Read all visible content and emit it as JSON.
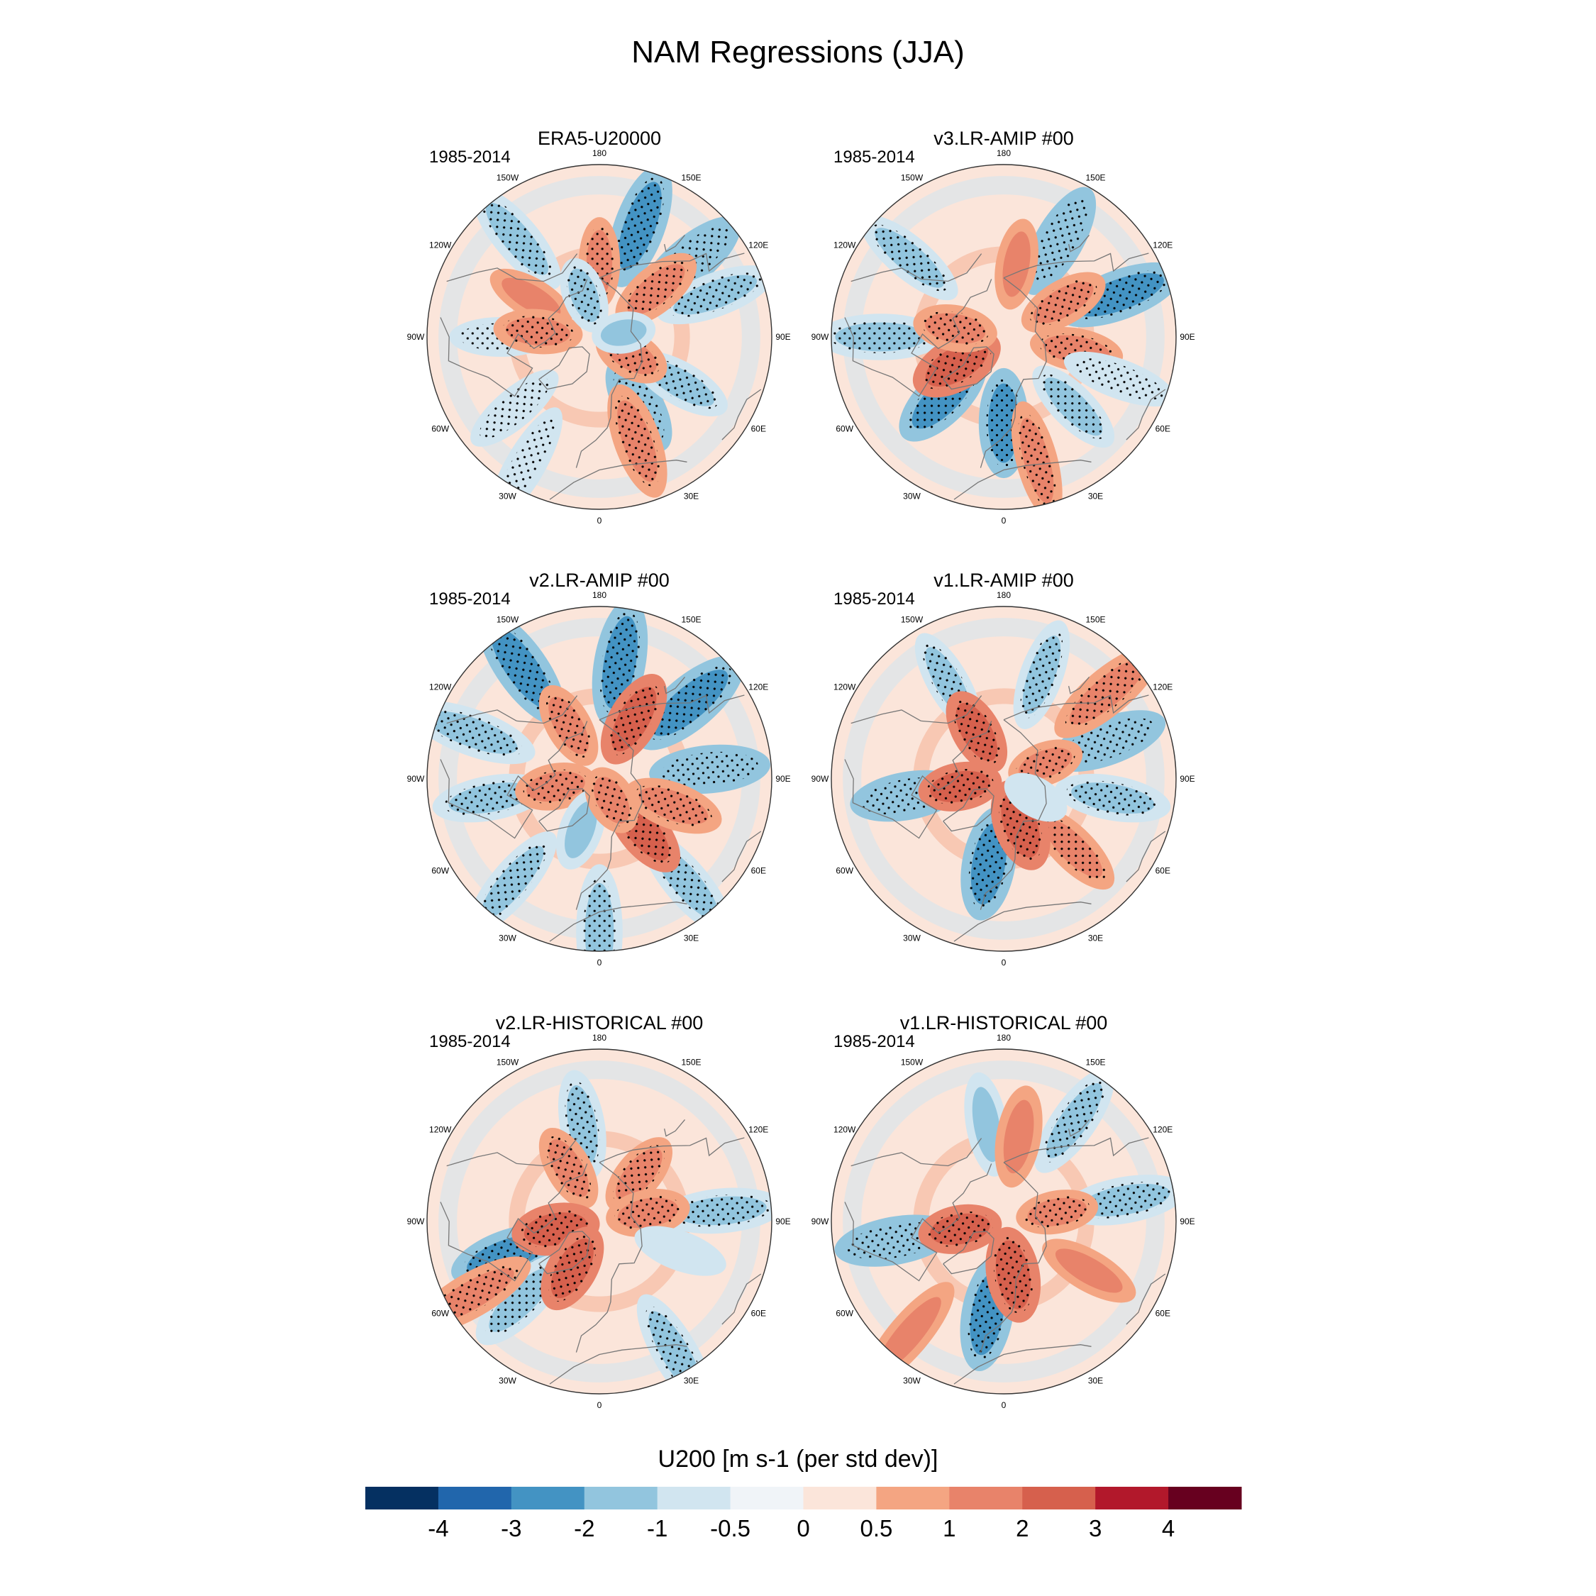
{
  "figure": {
    "title": "NAM Regressions (JJA)"
  },
  "panels": [
    {
      "title": "ERA5-U20000",
      "period": "1985-2014",
      "blobs": [
        {
          "lon": 160,
          "lat": 42,
          "value": -2.3,
          "stippled": true
        },
        {
          "lon": 130,
          "lat": 42,
          "value": -2.0,
          "stippled": true
        },
        {
          "lon": 110,
          "lat": 40,
          "value": -1.5,
          "stippled": true
        },
        {
          "lon": -140,
          "lat": 38,
          "value": -1.6,
          "stippled": true
        },
        {
          "lon": 180,
          "lat": 60,
          "value": 1.2,
          "stippled": true
        },
        {
          "lon": 130,
          "lat": 60,
          "value": 1.8,
          "stippled": true
        },
        {
          "lon": -120,
          "lat": 58,
          "value": 1.0,
          "stippled": false
        },
        {
          "lon": -90,
          "lat": 50,
          "value": -1.0,
          "stippled": true
        },
        {
          "lon": -95,
          "lat": 65,
          "value": 1.6,
          "stippled": true
        },
        {
          "lon": 30,
          "lat": 58,
          "value": -2.0,
          "stippled": true
        },
        {
          "lon": 60,
          "lat": 52,
          "value": -1.5,
          "stippled": true
        },
        {
          "lon": 60,
          "lat": 75,
          "value": 1.8,
          "stippled": true
        },
        {
          "lon": 20,
          "lat": 45,
          "value": 1.8,
          "stippled": true
        },
        {
          "lon": -50,
          "lat": 45,
          "value": -1.0,
          "stippled": true
        },
        {
          "lon": -160,
          "lat": 72,
          "value": -1.4,
          "stippled": true
        },
        {
          "lon": -30,
          "lat": 30,
          "value": -1.0,
          "stippled": true
        },
        {
          "lon": 100,
          "lat": 80,
          "value": -1.2,
          "stippled": false
        }
      ]
    },
    {
      "title": "v3.LR-AMIP  #00",
      "period": "1985-2014",
      "blobs": [
        {
          "lon": 150,
          "lat": 45,
          "value": -2.0,
          "stippled": true
        },
        {
          "lon": 110,
          "lat": 40,
          "value": -2.2,
          "stippled": true
        },
        {
          "lon": -130,
          "lat": 40,
          "value": -1.4,
          "stippled": true
        },
        {
          "lon": -90,
          "lat": 40,
          "value": -1.8,
          "stippled": true
        },
        {
          "lon": -45,
          "lat": 55,
          "value": -2.4,
          "stippled": true
        },
        {
          "lon": 0,
          "lat": 55,
          "value": -2.2,
          "stippled": true
        },
        {
          "lon": 45,
          "lat": 50,
          "value": -1.4,
          "stippled": true
        },
        {
          "lon": -60,
          "lat": 68,
          "value": 2.6,
          "stippled": true
        },
        {
          "lon": -100,
          "lat": 70,
          "value": 1.8,
          "stippled": true
        },
        {
          "lon": 120,
          "lat": 62,
          "value": 1.6,
          "stippled": true
        },
        {
          "lon": 80,
          "lat": 60,
          "value": 1.4,
          "stippled": true
        },
        {
          "lon": 170,
          "lat": 60,
          "value": 1.2,
          "stippled": false
        },
        {
          "lon": 15,
          "lat": 38,
          "value": 1.2,
          "stippled": true
        },
        {
          "lon": 70,
          "lat": 40,
          "value": -1.0,
          "stippled": true
        }
      ]
    },
    {
      "title": "v2.LR-AMIP  #00",
      "period": "1985-2014",
      "blobs": [
        {
          "lon": 170,
          "lat": 42,
          "value": -2.4,
          "stippled": true
        },
        {
          "lon": 130,
          "lat": 42,
          "value": -2.6,
          "stippled": true
        },
        {
          "lon": 95,
          "lat": 45,
          "value": -2.0,
          "stippled": true
        },
        {
          "lon": -145,
          "lat": 35,
          "value": -2.4,
          "stippled": true
        },
        {
          "lon": -110,
          "lat": 35,
          "value": -1.8,
          "stippled": true
        },
        {
          "lon": -80,
          "lat": 45,
          "value": -1.6,
          "stippled": true
        },
        {
          "lon": -40,
          "lat": 35,
          "value": -1.4,
          "stippled": true
        },
        {
          "lon": 0,
          "lat": 28,
          "value": -1.8,
          "stippled": true
        },
        {
          "lon": 40,
          "lat": 35,
          "value": -1.6,
          "stippled": true
        },
        {
          "lon": 150,
          "lat": 62,
          "value": 2.2,
          "stippled": true
        },
        {
          "lon": -150,
          "lat": 65,
          "value": 1.6,
          "stippled": true
        },
        {
          "lon": -80,
          "lat": 72,
          "value": 1.8,
          "stippled": true
        },
        {
          "lon": 40,
          "lat": 62,
          "value": 2.0,
          "stippled": true
        },
        {
          "lon": 70,
          "lat": 58,
          "value": 1.8,
          "stippled": true
        },
        {
          "lon": -20,
          "lat": 68,
          "value": -1.4,
          "stippled": false
        },
        {
          "lon": 30,
          "lat": 80,
          "value": 1.8,
          "stippled": true
        }
      ]
    },
    {
      "title": "v1.LR-AMIP  #00",
      "period": "1985-2014",
      "blobs": [
        {
          "lon": -150,
          "lat": 45,
          "value": -1.2,
          "stippled": true
        },
        {
          "lon": 160,
          "lat": 45,
          "value": -1.4,
          "stippled": true
        },
        {
          "lon": 110,
          "lat": 45,
          "value": -2.0,
          "stippled": true
        },
        {
          "lon": 80,
          "lat": 45,
          "value": -1.6,
          "stippled": true
        },
        {
          "lon": -80,
          "lat": 50,
          "value": -2.0,
          "stippled": true
        },
        {
          "lon": -10,
          "lat": 55,
          "value": -2.6,
          "stippled": true
        },
        {
          "lon": 45,
          "lat": 50,
          "value": 1.4,
          "stippled": true
        },
        {
          "lon": 130,
          "lat": 35,
          "value": 1.8,
          "stippled": true
        },
        {
          "lon": -150,
          "lat": 68,
          "value": 2.0,
          "stippled": true
        },
        {
          "lon": -80,
          "lat": 72,
          "value": 2.0,
          "stippled": true
        },
        {
          "lon": 20,
          "lat": 70,
          "value": 2.6,
          "stippled": true
        },
        {
          "lon": 110,
          "lat": 72,
          "value": 1.4,
          "stippled": true
        },
        {
          "lon": 60,
          "lat": 75,
          "value": -1.0,
          "stippled": false
        }
      ]
    },
    {
      "title": "v2.LR-HISTORICAL  #00",
      "period": "1985-2014",
      "blobs": [
        {
          "lon": -170,
          "lat": 50,
          "value": -1.6,
          "stippled": true
        },
        {
          "lon": 95,
          "lat": 40,
          "value": -1.6,
          "stippled": true
        },
        {
          "lon": -70,
          "lat": 50,
          "value": -2.2,
          "stippled": true
        },
        {
          "lon": -45,
          "lat": 45,
          "value": -1.8,
          "stippled": true
        },
        {
          "lon": 30,
          "lat": 28,
          "value": -1.6,
          "stippled": true
        },
        {
          "lon": -60,
          "lat": 30,
          "value": 1.6,
          "stippled": true
        },
        {
          "lon": -150,
          "lat": 65,
          "value": 1.6,
          "stippled": true
        },
        {
          "lon": 140,
          "lat": 65,
          "value": 1.6,
          "stippled": true
        },
        {
          "lon": -80,
          "lat": 72,
          "value": 2.4,
          "stippled": true
        },
        {
          "lon": -30,
          "lat": 68,
          "value": 2.2,
          "stippled": true
        },
        {
          "lon": 100,
          "lat": 70,
          "value": 1.8,
          "stippled": true
        },
        {
          "lon": 70,
          "lat": 55,
          "value": -1.0,
          "stippled": false
        }
      ]
    },
    {
      "title": "v1.LR-HISTORICAL  #00",
      "period": "1985-2014",
      "blobs": [
        {
          "lon": 145,
          "lat": 40,
          "value": -1.6,
          "stippled": true
        },
        {
          "lon": 100,
          "lat": 40,
          "value": -1.8,
          "stippled": true
        },
        {
          "lon": -80,
          "lat": 45,
          "value": -2.0,
          "stippled": true
        },
        {
          "lon": -10,
          "lat": 52,
          "value": -2.4,
          "stippled": true
        },
        {
          "lon": -170,
          "lat": 50,
          "value": -1.2,
          "stippled": false
        },
        {
          "lon": 170,
          "lat": 55,
          "value": 1.6,
          "stippled": false
        },
        {
          "lon": -80,
          "lat": 72,
          "value": 2.0,
          "stippled": true
        },
        {
          "lon": 10,
          "lat": 68,
          "value": 2.6,
          "stippled": true
        },
        {
          "lon": 100,
          "lat": 68,
          "value": 1.4,
          "stippled": true
        },
        {
          "lon": 60,
          "lat": 50,
          "value": 1.2,
          "stippled": false
        },
        {
          "lon": -40,
          "lat": 30,
          "value": 1.2,
          "stippled": false
        }
      ]
    }
  ],
  "map": {
    "lat_min": 20,
    "lon_labels": [
      "180",
      "150E",
      "120E",
      "90E",
      "60E",
      "30E",
      "0",
      "30W",
      "60W",
      "90W",
      "120W",
      "150W"
    ],
    "lon_values": [
      180,
      150,
      120,
      90,
      60,
      30,
      0,
      -30,
      -60,
      -90,
      -120,
      -150
    ]
  },
  "colorbar": {
    "title": "U200 [m s-1 (per std dev)]",
    "levels": [
      -4,
      -3,
      -2,
      -1,
      -0.5,
      0,
      0.5,
      1,
      2,
      3,
      4
    ],
    "labels": [
      "-4",
      "-3",
      "-2",
      "-1",
      "-0.5",
      "0",
      "0.5",
      "1",
      "2",
      "3",
      "4"
    ],
    "colors": [
      "#053061",
      "#2166ac",
      "#4393c3",
      "#92c5de",
      "#d1e5f0",
      "#f0f4f8",
      "#fbe5da",
      "#f4a582",
      "#e8836a",
      "#d6604d",
      "#b2182b",
      "#67001f"
    ]
  }
}
